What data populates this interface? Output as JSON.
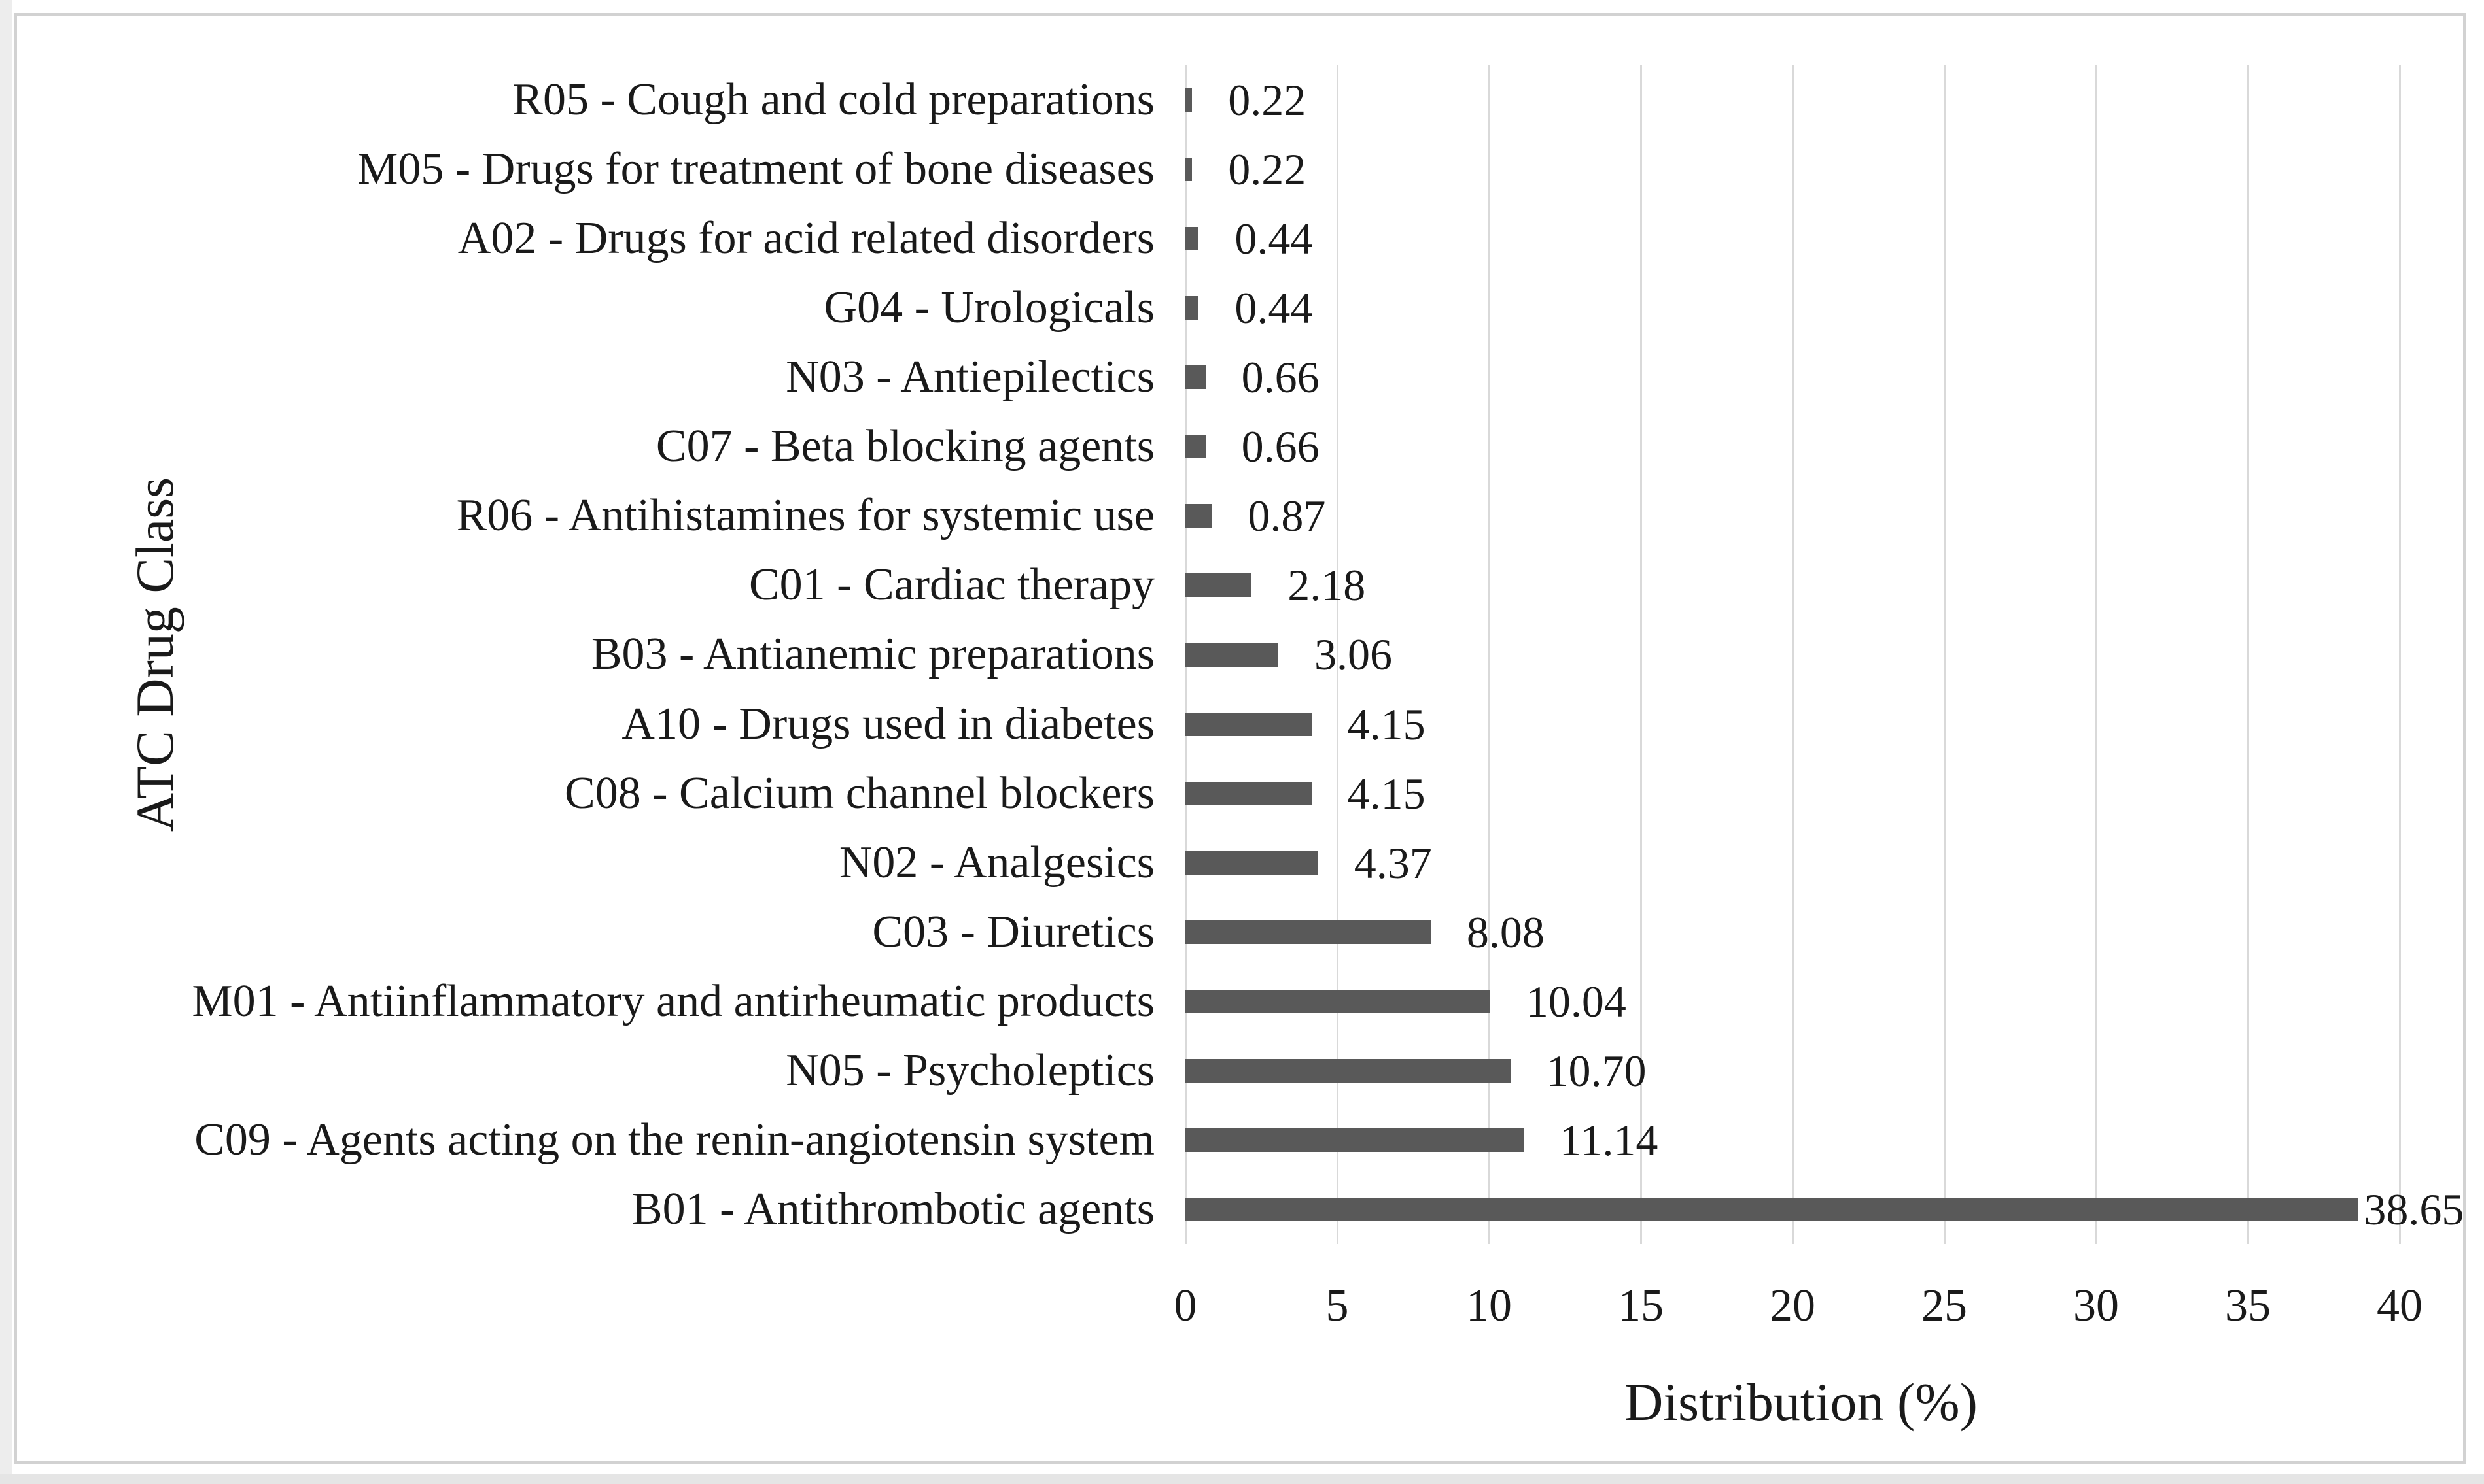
{
  "chart_data": {
    "type": "bar",
    "orientation": "horizontal",
    "title": "",
    "xlabel": "Distribution (%)",
    "ylabel": "ATC Drug Class",
    "categories": [
      "R05 - Cough and cold preparations",
      "M05 - Drugs for treatment of bone diseases",
      "A02 - Drugs for acid related disorders",
      "G04 - Urologicals",
      "N03 - Antiepilectics",
      "C07 - Beta blocking agents",
      "R06 - Antihistamines for systemic use",
      "C01 - Cardiac therapy",
      "B03 - Antianemic preparations",
      "A10 - Drugs used in diabetes",
      "C08 - Calcium channel blockers",
      "N02 - Analgesics",
      "C03 - Diuretics",
      "M01 - Antiinflammatory and antirheumatic products",
      "N05 - Psycholeptics",
      "C09 - Agents acting on the renin-angiotensin system",
      "B01 - Antithrombotic agents"
    ],
    "values": [
      0.22,
      0.22,
      0.44,
      0.44,
      0.66,
      0.66,
      0.87,
      2.18,
      3.06,
      4.15,
      4.15,
      4.37,
      8.08,
      10.04,
      10.7,
      11.14,
      38.65
    ],
    "value_labels": [
      "0.22",
      "0.22",
      "0.44",
      "0.44",
      "0.66",
      "0.66",
      "0.87",
      "2.18",
      "3.06",
      "4.15",
      "4.15",
      "4.37",
      "8.08",
      "10.04",
      "10.70",
      "11.14",
      "38.65"
    ],
    "xlim": [
      0,
      40
    ],
    "xticks": [
      0,
      5,
      10,
      15,
      20,
      25,
      30,
      35,
      40
    ],
    "grid": true,
    "legend": "none",
    "bar_color": "#595959",
    "gridline_color": "#d9d9d9",
    "text_color": "#1a1a1a",
    "frame_color": "#d2d2d2"
  }
}
